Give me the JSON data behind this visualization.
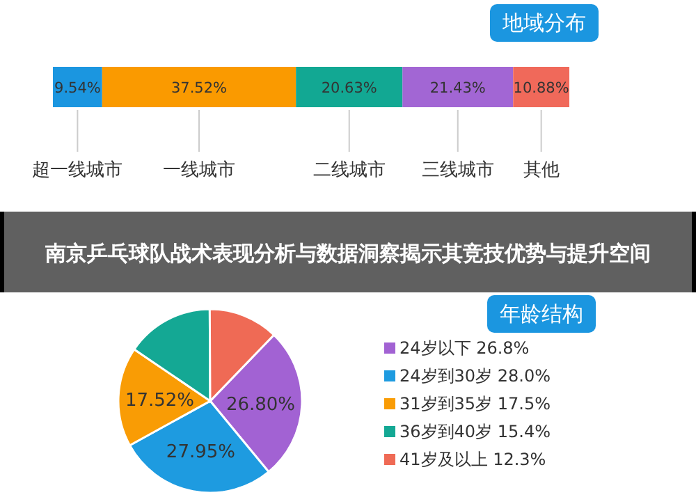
{
  "chart_data": [
    {
      "type": "bar",
      "title": "地域分布",
      "orientation": "horizontal",
      "stacked": true,
      "categories": [
        null
      ],
      "xlim": [
        0,
        100
      ],
      "tick_labels": false,
      "annotations": [
        "南京乒乓球队战术表现分析与数据洞察揭示其竞技优势与提升空间"
      ],
      "series": [
        {
          "name": "超一线城市",
          "color": "#1b96e0",
          "values": [
            9.54
          ],
          "value_labels": [
            "9.54%"
          ]
        },
        {
          "name": "一线城市",
          "color": "#fa9a00",
          "values": [
            37.52
          ],
          "value_labels": [
            "37.52%"
          ]
        },
        {
          "name": "二线城市",
          "color": "#12a893",
          "values": [
            20.63
          ],
          "value_labels": [
            "20.63%"
          ]
        },
        {
          "name": "三线城市",
          "color": "#a266d4",
          "values": [
            21.43
          ],
          "value_labels": [
            "21.43%"
          ]
        },
        {
          "name": "其他",
          "color": "#f0695a",
          "values": [
            10.88
          ],
          "value_labels": [
            "10.88%"
          ]
        }
      ]
    },
    {
      "type": "pie",
      "title": "年龄结构",
      "legend": "right",
      "categories": [
        "24岁以下 26.8%",
        "24岁到30岁 28.0%",
        "31岁到35岁 17.5%",
        "36岁到40岁 15.4%",
        "41岁及以上 12.3%"
      ],
      "values": [
        26.8,
        27.95,
        17.52,
        15.43,
        12.3
      ],
      "value_labels": [
        "26.80%",
        "27.95%",
        "17.52%",
        null,
        null
      ],
      "colors": [
        "#a262d3",
        "#1e9be0",
        "#f99c05",
        "#14a894",
        "#ef6a55"
      ]
    }
  ]
}
